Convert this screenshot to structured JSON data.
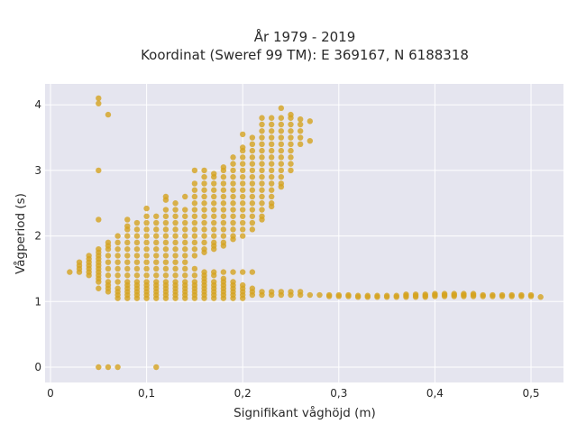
{
  "chart_data": {
    "type": "scatter",
    "title_line1": "År 1979 - 2019",
    "title_line2": "Koordinat (Sweref 99 TM): E 369167, N 6188318",
    "xlabel": "Signifikant våghöjd (m)",
    "ylabel": "Vågperiod (s)",
    "xlim": [
      0,
      0.535
    ],
    "ylim": [
      -0.2,
      4.3
    ],
    "x_ticks": [
      0,
      0.1,
      0.2,
      0.3,
      0.4,
      0.5
    ],
    "x_tick_labels": [
      "0",
      "0,1",
      "0,2",
      "0,3",
      "0,4",
      "0,5"
    ],
    "y_ticks": [
      0,
      1,
      2,
      3,
      4
    ],
    "y_tick_labels": [
      "0",
      "1",
      "2",
      "3",
      "4"
    ],
    "grid": true,
    "marker_color": "#d4a21f",
    "plot_bg": "#e5e5ef",
    "columns": [
      {
        "x": 0.02,
        "y": [
          1.45
        ]
      },
      {
        "x": 0.03,
        "y": [
          1.45,
          1.5,
          1.55,
          1.6
        ]
      },
      {
        "x": 0.04,
        "y": [
          1.4,
          1.45,
          1.5,
          1.55,
          1.6,
          1.65,
          1.7
        ]
      },
      {
        "x": 0.05,
        "y": [
          1.2,
          1.3,
          1.35,
          1.4,
          1.45,
          1.5,
          1.55,
          1.6,
          1.65,
          1.7,
          1.75,
          1.8,
          2.25,
          3.0,
          4.02,
          4.1,
          0.0
        ]
      },
      {
        "x": 0.06,
        "y": [
          1.15,
          1.2,
          1.25,
          1.3,
          1.4,
          1.5,
          1.6,
          1.7,
          1.8,
          1.85,
          1.9,
          3.85,
          0.0
        ]
      },
      {
        "x": 0.07,
        "y": [
          1.05,
          1.1,
          1.15,
          1.2,
          1.3,
          1.4,
          1.5,
          1.6,
          1.7,
          1.8,
          1.9,
          2.0,
          0.0
        ]
      },
      {
        "x": 0.08,
        "y": [
          1.05,
          1.1,
          1.15,
          1.2,
          1.25,
          1.3,
          1.4,
          1.5,
          1.6,
          1.7,
          1.8,
          1.9,
          2.0,
          2.1,
          2.15,
          2.25
        ]
      },
      {
        "x": 0.09,
        "y": [
          1.05,
          1.1,
          1.15,
          1.2,
          1.25,
          1.3,
          1.4,
          1.5,
          1.6,
          1.7,
          1.8,
          1.9,
          2.0,
          2.1,
          2.2
        ]
      },
      {
        "x": 0.1,
        "y": [
          1.05,
          1.1,
          1.15,
          1.2,
          1.25,
          1.3,
          1.4,
          1.5,
          1.6,
          1.7,
          1.8,
          1.9,
          2.0,
          2.1,
          2.2,
          2.3,
          2.42
        ]
      },
      {
        "x": 0.11,
        "y": [
          1.05,
          1.1,
          1.15,
          1.2,
          1.25,
          1.3,
          1.4,
          1.5,
          1.6,
          1.7,
          1.8,
          1.9,
          2.0,
          2.1,
          2.2,
          2.3,
          0.0
        ]
      },
      {
        "x": 0.12,
        "y": [
          1.05,
          1.1,
          1.15,
          1.2,
          1.25,
          1.3,
          1.4,
          1.5,
          1.6,
          1.7,
          1.8,
          1.9,
          2.0,
          2.1,
          2.2,
          2.3,
          2.4,
          2.55,
          2.6
        ]
      },
      {
        "x": 0.13,
        "y": [
          1.05,
          1.1,
          1.15,
          1.2,
          1.25,
          1.3,
          1.4,
          1.5,
          1.6,
          1.7,
          1.8,
          1.9,
          2.0,
          2.1,
          2.2,
          2.3,
          2.4,
          2.5
        ]
      },
      {
        "x": 0.14,
        "y": [
          1.05,
          1.1,
          1.15,
          1.2,
          1.25,
          1.3,
          1.4,
          1.5,
          1.6,
          1.7,
          1.8,
          1.9,
          2.0,
          2.1,
          2.2,
          2.3,
          2.4,
          2.6
        ]
      },
      {
        "x": 0.15,
        "y": [
          1.05,
          1.1,
          1.15,
          1.2,
          1.25,
          1.3,
          1.4,
          1.5,
          1.7,
          1.8,
          1.9,
          2.0,
          2.1,
          2.2,
          2.3,
          2.4,
          2.5,
          2.6,
          2.7,
          2.8,
          3.0
        ]
      },
      {
        "x": 0.16,
        "y": [
          1.05,
          1.1,
          1.15,
          1.2,
          1.25,
          1.3,
          1.35,
          1.4,
          1.45,
          1.75,
          1.8,
          1.9,
          2.0,
          2.1,
          2.2,
          2.3,
          2.4,
          2.5,
          2.6,
          2.7,
          2.8,
          2.9,
          3.0
        ]
      },
      {
        "x": 0.17,
        "y": [
          1.05,
          1.1,
          1.15,
          1.2,
          1.25,
          1.3,
          1.4,
          1.45,
          1.8,
          1.85,
          1.9,
          2.0,
          2.1,
          2.2,
          2.3,
          2.4,
          2.5,
          2.6,
          2.7,
          2.8,
          2.9,
          2.95
        ]
      },
      {
        "x": 0.18,
        "y": [
          1.05,
          1.1,
          1.15,
          1.2,
          1.25,
          1.3,
          1.35,
          1.45,
          1.85,
          1.9,
          2.0,
          2.1,
          2.2,
          2.3,
          2.4,
          2.5,
          2.6,
          2.7,
          2.8,
          2.9,
          3.0,
          3.05
        ]
      },
      {
        "x": 0.19,
        "y": [
          1.05,
          1.1,
          1.15,
          1.2,
          1.25,
          1.3,
          1.45,
          1.95,
          2.0,
          2.1,
          2.2,
          2.3,
          2.4,
          2.5,
          2.6,
          2.7,
          2.8,
          2.9,
          3.0,
          3.1,
          3.2
        ]
      },
      {
        "x": 0.2,
        "y": [
          1.05,
          1.1,
          1.15,
          1.2,
          1.25,
          1.45,
          2.0,
          2.1,
          2.2,
          2.3,
          2.4,
          2.5,
          2.6,
          2.7,
          2.8,
          2.9,
          3.0,
          3.1,
          3.2,
          3.3,
          3.35,
          3.55
        ]
      },
      {
        "x": 0.21,
        "y": [
          1.1,
          1.15,
          1.2,
          1.45,
          2.1,
          2.2,
          2.3,
          2.4,
          2.5,
          2.6,
          2.7,
          2.8,
          2.9,
          3.0,
          3.1,
          3.2,
          3.3,
          3.4,
          3.5
        ]
      },
      {
        "x": 0.22,
        "y": [
          1.1,
          1.15,
          2.25,
          2.3,
          2.4,
          2.5,
          2.6,
          2.7,
          2.8,
          2.9,
          3.0,
          3.1,
          3.2,
          3.3,
          3.4,
          3.5,
          3.6,
          3.7,
          3.8
        ]
      },
      {
        "x": 0.23,
        "y": [
          1.1,
          1.15,
          2.45,
          2.5,
          2.6,
          2.7,
          2.8,
          2.9,
          3.0,
          3.1,
          3.2,
          3.3,
          3.4,
          3.5,
          3.6,
          3.7,
          3.8
        ]
      },
      {
        "x": 0.24,
        "y": [
          1.1,
          1.15,
          2.75,
          2.8,
          2.9,
          3.0,
          3.1,
          3.2,
          3.3,
          3.4,
          3.5,
          3.6,
          3.7,
          3.8,
          3.95
        ]
      },
      {
        "x": 0.25,
        "y": [
          1.1,
          1.15,
          3.0,
          3.1,
          3.2,
          3.3,
          3.4,
          3.5,
          3.6,
          3.7,
          3.8,
          3.85
        ]
      },
      {
        "x": 0.26,
        "y": [
          1.1,
          1.15,
          3.4,
          3.5,
          3.6,
          3.7,
          3.78
        ]
      },
      {
        "x": 0.27,
        "y": [
          1.1,
          3.45,
          3.75
        ]
      },
      {
        "x": 0.28,
        "y": [
          1.1
        ]
      },
      {
        "x": 0.29,
        "y": [
          1.08,
          1.1
        ]
      },
      {
        "x": 0.3,
        "y": [
          1.08,
          1.1
        ]
      },
      {
        "x": 0.31,
        "y": [
          1.08,
          1.1
        ]
      },
      {
        "x": 0.32,
        "y": [
          1.07,
          1.09
        ]
      },
      {
        "x": 0.33,
        "y": [
          1.07,
          1.09
        ]
      },
      {
        "x": 0.34,
        "y": [
          1.07,
          1.09
        ]
      },
      {
        "x": 0.35,
        "y": [
          1.07,
          1.09
        ]
      },
      {
        "x": 0.36,
        "y": [
          1.07,
          1.09
        ]
      },
      {
        "x": 0.37,
        "y": [
          1.07,
          1.09,
          1.11
        ]
      },
      {
        "x": 0.38,
        "y": [
          1.07,
          1.09,
          1.11
        ]
      },
      {
        "x": 0.39,
        "y": [
          1.07,
          1.09,
          1.11
        ]
      },
      {
        "x": 0.4,
        "y": [
          1.08,
          1.1,
          1.12
        ]
      },
      {
        "x": 0.41,
        "y": [
          1.08,
          1.1,
          1.12
        ]
      },
      {
        "x": 0.42,
        "y": [
          1.08,
          1.1,
          1.12
        ]
      },
      {
        "x": 0.43,
        "y": [
          1.08,
          1.1,
          1.12
        ]
      },
      {
        "x": 0.44,
        "y": [
          1.08,
          1.1,
          1.12
        ]
      },
      {
        "x": 0.45,
        "y": [
          1.08,
          1.1
        ]
      },
      {
        "x": 0.46,
        "y": [
          1.08,
          1.1
        ]
      },
      {
        "x": 0.47,
        "y": [
          1.08,
          1.1
        ]
      },
      {
        "x": 0.48,
        "y": [
          1.08,
          1.1
        ]
      },
      {
        "x": 0.49,
        "y": [
          1.08,
          1.1
        ]
      },
      {
        "x": 0.5,
        "y": [
          1.08,
          1.1
        ]
      },
      {
        "x": 0.51,
        "y": [
          1.07
        ]
      }
    ]
  }
}
